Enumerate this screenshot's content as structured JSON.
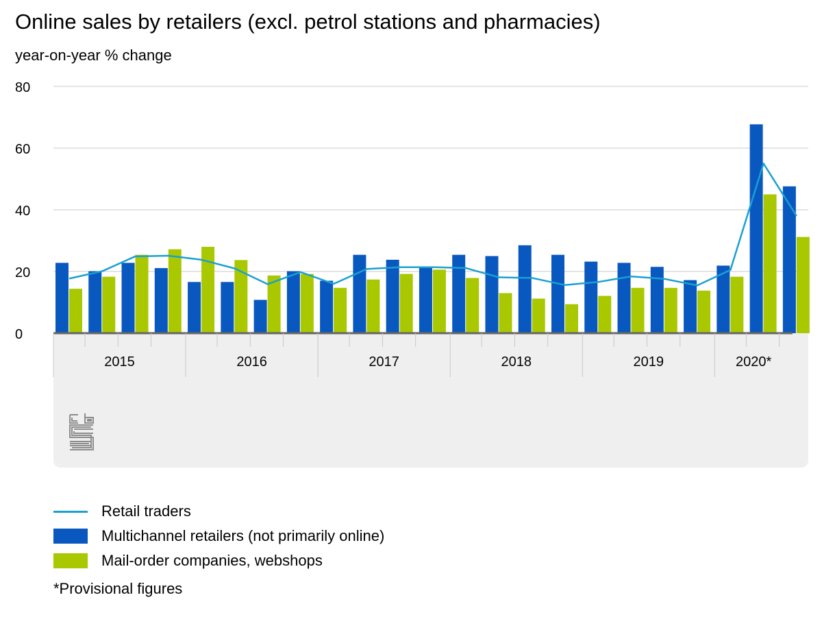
{
  "chart_data": {
    "type": "bar",
    "title": "Online sales by retailers (excl. petrol stations and pharmacies)",
    "ylabel": "year-on-year % change",
    "ylim": [
      0,
      80
    ],
    "yticks": [
      0,
      20,
      40,
      60,
      80
    ],
    "grid": true,
    "legend_position": "bottom-left",
    "year_labels": [
      "2015",
      "2016",
      "2017",
      "2018",
      "2019",
      "2020*"
    ],
    "categories": [
      "2015 Q1",
      "2015 Q2",
      "2015 Q3",
      "2015 Q4",
      "2016 Q1",
      "2016 Q2",
      "2016 Q3",
      "2016 Q4",
      "2017 Q1",
      "2017 Q2",
      "2017 Q3",
      "2017 Q4",
      "2018 Q1",
      "2018 Q2",
      "2018 Q3",
      "2018 Q4",
      "2019 Q1",
      "2019 Q2",
      "2019 Q3",
      "2019 Q4",
      "2020 Q1",
      "2020 Q2",
      "2020 Q3"
    ],
    "series": [
      {
        "name": "Retail traders",
        "kind": "line",
        "color": "#1aa0d0",
        "values": [
          17.7,
          20.1,
          24.9,
          25.1,
          23.8,
          21.0,
          15.9,
          19.8,
          16.0,
          20.8,
          21.4,
          21.4,
          21.1,
          18.1,
          17.9,
          15.6,
          16.6,
          18.4,
          17.6,
          15.5,
          20.5,
          55.0,
          38.0
        ]
      },
      {
        "name": "Multichannel retailers (not primarily online)",
        "kind": "bar",
        "color": "#0958c0",
        "values": [
          22.8,
          20.1,
          22.8,
          21.1,
          16.6,
          16.6,
          10.8,
          20.1,
          17.0,
          25.4,
          23.8,
          21.1,
          25.4,
          25.0,
          28.5,
          25.4,
          23.2,
          22.8,
          21.5,
          17.2,
          21.9,
          67.7,
          47.6
        ]
      },
      {
        "name": "Mail-order companies, webshops",
        "kind": "bar",
        "color": "#a9c800",
        "values": [
          14.4,
          18.3,
          25.4,
          27.2,
          28.0,
          23.7,
          18.7,
          19.2,
          14.7,
          17.4,
          19.2,
          20.6,
          17.9,
          13.0,
          11.2,
          9.4,
          12.1,
          14.7,
          14.7,
          13.8,
          18.3,
          45.0,
          31.2
        ]
      }
    ]
  },
  "footnote": "*Provisional figures",
  "icons": {
    "logo": "cbs-logo"
  }
}
